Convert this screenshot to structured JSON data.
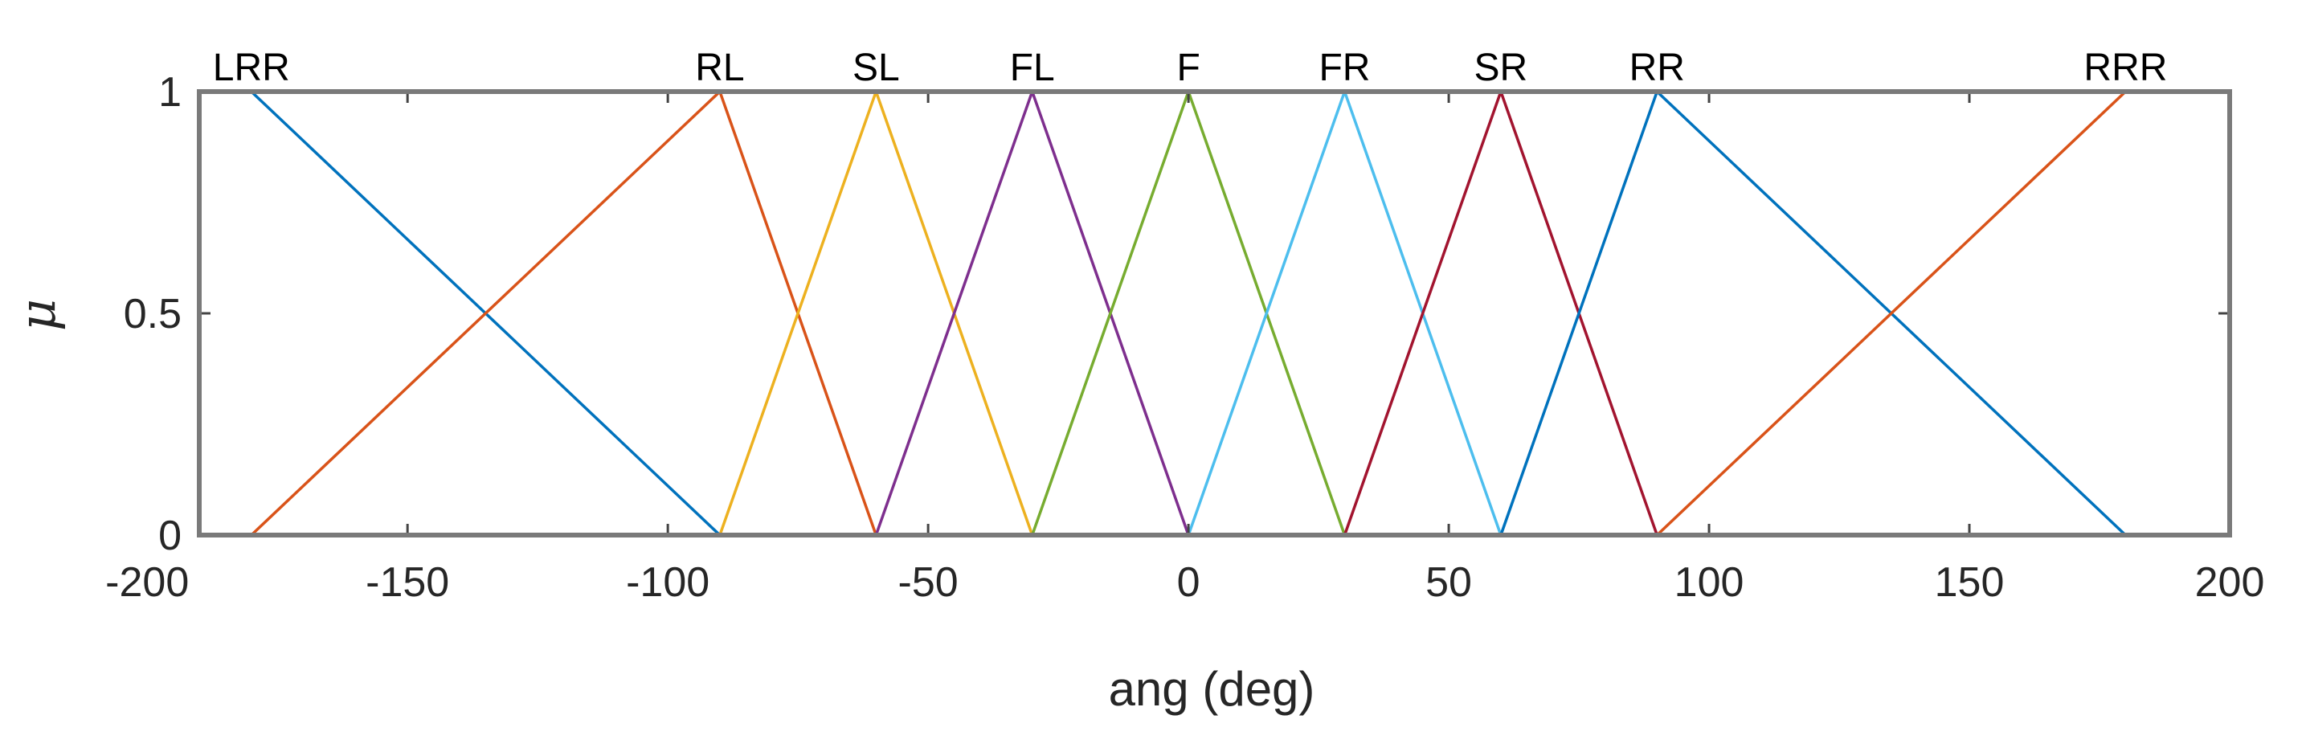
{
  "chart_data": {
    "type": "line",
    "title": "",
    "xlabel": "ang (deg)",
    "ylabel": "μ",
    "xlim": [
      -190,
      200
    ],
    "ylim": [
      0,
      1
    ],
    "grid": false,
    "x_ticks": [
      {
        "value": -200,
        "label": "-200"
      },
      {
        "value": -150,
        "label": "-150"
      },
      {
        "value": -100,
        "label": "-100"
      },
      {
        "value": -50,
        "label": "-50"
      },
      {
        "value": 0,
        "label": "0"
      },
      {
        "value": 50,
        "label": "50"
      },
      {
        "value": 100,
        "label": "100"
      },
      {
        "value": 150,
        "label": "150"
      },
      {
        "value": 200,
        "label": "200"
      }
    ],
    "y_ticks": [
      {
        "value": 0,
        "label": "0"
      },
      {
        "value": 0.5,
        "label": "0.5"
      },
      {
        "value": 1,
        "label": "1"
      }
    ],
    "series": [
      {
        "name": "LRR",
        "color": "#0072BD",
        "x": [
          -190,
          -180,
          -90,
          190
        ],
        "y": [
          1,
          1,
          0,
          0
        ]
      },
      {
        "name": "RL",
        "color": "#D95319",
        "x": [
          -190,
          -180,
          -90,
          -60,
          190
        ],
        "y": [
          0,
          0,
          1,
          0,
          0
        ]
      },
      {
        "name": "SL",
        "color": "#EDB120",
        "x": [
          -190,
          -90,
          -60,
          -30,
          190
        ],
        "y": [
          0,
          0,
          1,
          0,
          0
        ]
      },
      {
        "name": "FL",
        "color": "#7E2F8E",
        "x": [
          -190,
          -60,
          -30,
          0,
          190
        ],
        "y": [
          0,
          0,
          1,
          0,
          0
        ]
      },
      {
        "name": "F",
        "color": "#77AC30",
        "x": [
          -190,
          -30,
          0,
          30,
          190
        ],
        "y": [
          0,
          0,
          1,
          0,
          0
        ]
      },
      {
        "name": "FR",
        "color": "#4DBEEE",
        "x": [
          -190,
          0,
          30,
          60,
          190
        ],
        "y": [
          0,
          0,
          1,
          0,
          0
        ]
      },
      {
        "name": "SR",
        "color": "#A2142F",
        "x": [
          -190,
          30,
          60,
          90,
          190
        ],
        "y": [
          0,
          0,
          1,
          0,
          0
        ]
      },
      {
        "name": "RR",
        "color": "#0072BD",
        "x": [
          -190,
          60,
          90,
          180,
          190
        ],
        "y": [
          0,
          0,
          1,
          0,
          0
        ]
      },
      {
        "name": "RRR",
        "color": "#D95319",
        "x": [
          -190,
          90,
          180,
          190
        ],
        "y": [
          0,
          0,
          1,
          1
        ]
      }
    ],
    "labels": [
      {
        "text": "LRR",
        "x": -180
      },
      {
        "text": "RL",
        "x": -90
      },
      {
        "text": "SL",
        "x": -60
      },
      {
        "text": "FL",
        "x": -30
      },
      {
        "text": "F",
        "x": 0
      },
      {
        "text": "FR",
        "x": 30
      },
      {
        "text": "SR",
        "x": 60
      },
      {
        "text": "RR",
        "x": 90
      },
      {
        "text": "RRR",
        "x": 180
      }
    ]
  }
}
